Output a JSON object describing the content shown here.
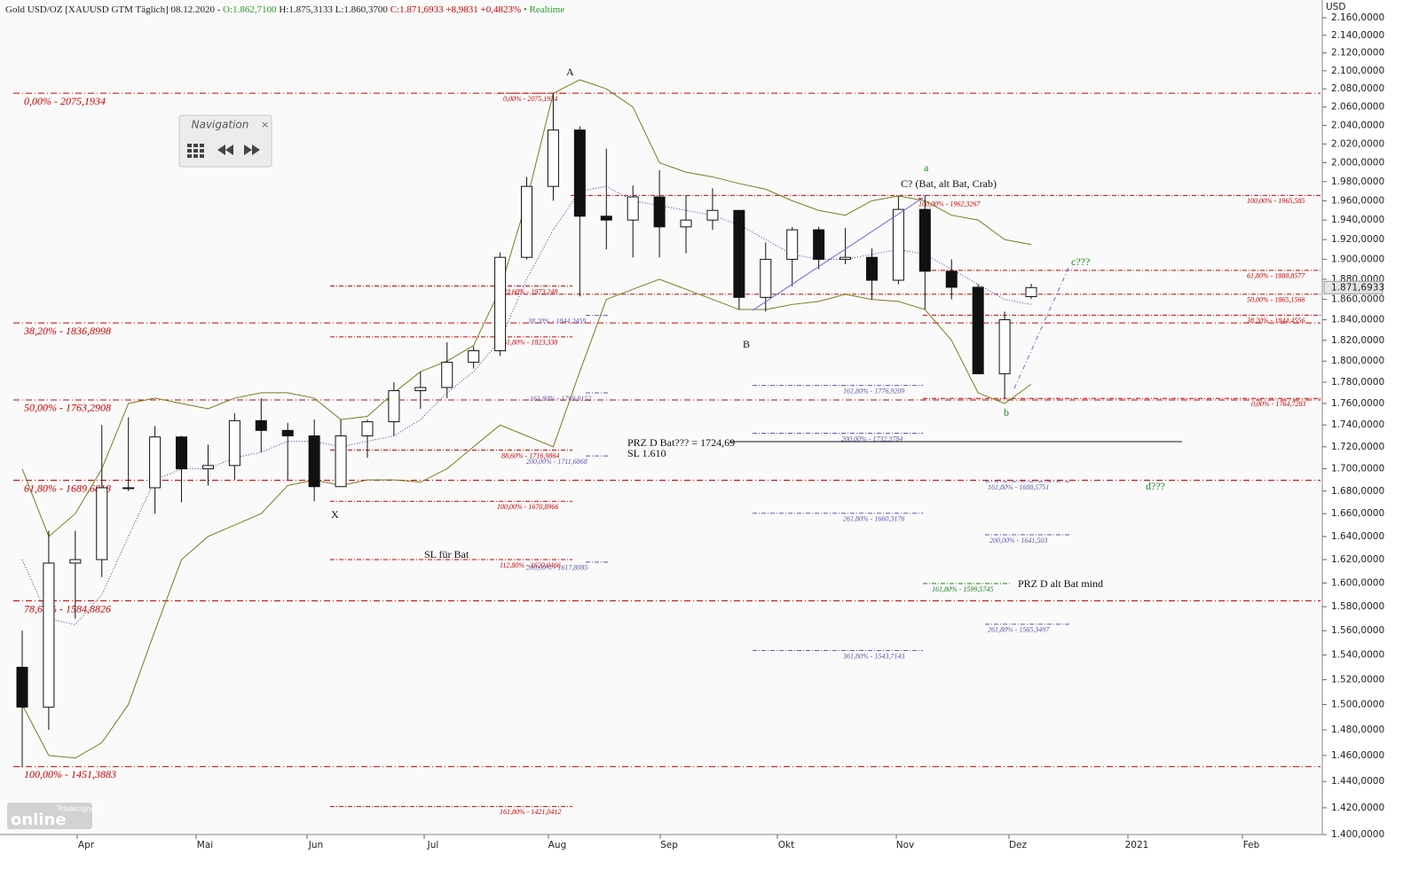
{
  "chart_data": {
    "type": "candlestick",
    "header": [
      {
        "text": "Gold USD/OZ [XAUUSD GTM Täglich] 08.12.2020 - ",
        "color": "#222222"
      },
      {
        "text": "O:1.862,7100 ",
        "color": "#2a9a2a"
      },
      {
        "text": "H:1.875,3133 L:1.860,3700 ",
        "color": "#222222"
      },
      {
        "text": "C:1.871,6933 +8,9831 +0,4823% ",
        "color": "#cc0000"
      },
      {
        "text": "• Realtime",
        "color": "#2a9a2a"
      }
    ],
    "y_axis_label": "USD",
    "log_scale": true,
    "ylim": [
      1400,
      2160
    ],
    "yticks": [
      {
        "value": 1400,
        "label": "1.400,0000"
      },
      {
        "value": 1420,
        "label": "1.420,0000"
      },
      {
        "value": 1440,
        "label": "1.440,0000"
      },
      {
        "value": 1460,
        "label": "1.460,0000"
      },
      {
        "value": 1480,
        "label": "1.480,0000"
      },
      {
        "value": 1500,
        "label": "1.500,0000"
      },
      {
        "value": 1520,
        "label": "1.520,0000"
      },
      {
        "value": 1540,
        "label": "1.540,0000"
      },
      {
        "value": 1560,
        "label": "1.560,0000"
      },
      {
        "value": 1580,
        "label": "1.580,0000"
      },
      {
        "value": 1600,
        "label": "1.600,0000"
      },
      {
        "value": 1620,
        "label": "1.620,0000"
      },
      {
        "value": 1640,
        "label": "1.640,0000"
      },
      {
        "value": 1660,
        "label": "1.660,0000"
      },
      {
        "value": 1680,
        "label": "1.680,0000"
      },
      {
        "value": 1700,
        "label": "1.700,0000"
      },
      {
        "value": 1720,
        "label": "1.720,0000"
      },
      {
        "value": 1740,
        "label": "1.740,0000"
      },
      {
        "value": 1760,
        "label": "1.760,0000"
      },
      {
        "value": 1780,
        "label": "1.780,0000"
      },
      {
        "value": 1800,
        "label": "1.800,0000"
      },
      {
        "value": 1820,
        "label": "1.820,0000"
      },
      {
        "value": 1840,
        "label": "1.840,0000"
      },
      {
        "value": 1860,
        "label": "1.860,0000"
      },
      {
        "value": 1880,
        "label": "1.880,0000"
      },
      {
        "value": 1900,
        "label": "1.900,0000"
      },
      {
        "value": 1920,
        "label": "1.920,0000"
      },
      {
        "value": 1940,
        "label": "1.940,0000"
      },
      {
        "value": 1960,
        "label": "1.960,0000"
      },
      {
        "value": 1980,
        "label": "1.980,0000"
      },
      {
        "value": 2000,
        "label": "2.000,0000"
      },
      {
        "value": 2020,
        "label": "2.020,0000"
      },
      {
        "value": 2040,
        "label": "2.040,0000"
      },
      {
        "value": 2060,
        "label": "2.060,0000"
      },
      {
        "value": 2080,
        "label": "2.080,0000"
      },
      {
        "value": 2100,
        "label": "2.100,0000"
      },
      {
        "value": 2120,
        "label": "2.120,0000"
      },
      {
        "value": 2140,
        "label": "2.140,0000"
      },
      {
        "value": 2160,
        "label": "2.160,0000"
      }
    ],
    "x_labels": [
      "Apr",
      "Mai",
      "Jun",
      "Jul",
      "Aug",
      "Sep",
      "Okt",
      "Nov",
      "Dez",
      "2021",
      "Feb"
    ],
    "candles": {
      "open": [
        1530,
        1498,
        1617,
        1620,
        1683,
        1683,
        1729,
        1700,
        1703,
        1744,
        1735,
        1730,
        1684,
        1730,
        1743,
        1772,
        1775,
        1799,
        1810,
        1902,
        1975,
        2035,
        1944,
        1940,
        1964,
        1933,
        1940,
        1950,
        1862,
        1900,
        1930,
        1900,
        1902,
        1879,
        1951,
        1888,
        1872,
        1788,
        1862.71
      ],
      "high": [
        1560,
        1645,
        1645,
        1740,
        1747,
        1739,
        1730,
        1722,
        1751,
        1765,
        1742,
        1745,
        1745,
        1745,
        1780,
        1790,
        1818,
        1814,
        1907,
        1985,
        2075,
        2039,
        2015,
        1976,
        1992,
        1966,
        1973,
        1950,
        1917,
        1933,
        1933,
        1932,
        1911,
        1965,
        1966,
        1900,
        1875,
        1848,
        1875.31
      ],
      "low": [
        1451,
        1480,
        1570,
        1605,
        1680,
        1660,
        1670,
        1685,
        1690,
        1715,
        1690,
        1671,
        1690,
        1710,
        1730,
        1755,
        1765,
        1793,
        1805,
        1900,
        1960,
        1863,
        1910,
        1902,
        1902,
        1906,
        1930,
        1850,
        1848,
        1873,
        1890,
        1895,
        1860,
        1875,
        1850,
        1860,
        1800,
        1765,
        1860.37
      ],
      "close": [
        1498,
        1617,
        1620,
        1683,
        1683,
        1729,
        1700,
        1703,
        1744,
        1735,
        1730,
        1684,
        1730,
        1743,
        1772,
        1775,
        1799,
        1810,
        1902,
        1975,
        2035,
        1944,
        1940,
        1964,
        1933,
        1940,
        1950,
        1862,
        1900,
        1930,
        1900,
        1902,
        1879,
        1951,
        1888,
        1872,
        1788,
        1840,
        1871.69
      ]
    },
    "bands": {
      "upper": [
        1700,
        1640,
        1660,
        1700,
        1760,
        1765,
        1760,
        1755,
        1765,
        1770,
        1770,
        1765,
        1745,
        1748,
        1770,
        1790,
        1800,
        1815,
        1870,
        1960,
        2075,
        2090,
        2080,
        2060,
        2000,
        1990,
        1985,
        1978,
        1972,
        1960,
        1950,
        1945,
        1960,
        1965,
        1960,
        1945,
        1940,
        1920,
        1915
      ],
      "middle": [
        1620,
        1570,
        1565,
        1590,
        1640,
        1690,
        1700,
        1700,
        1710,
        1715,
        1725,
        1725,
        1720,
        1725,
        1730,
        1745,
        1770,
        1790,
        1820,
        1880,
        1930,
        1970,
        1975,
        1960,
        1955,
        1950,
        1945,
        1935,
        1920,
        1905,
        1900,
        1900,
        1905,
        1910,
        1905,
        1890,
        1875,
        1860,
        1855
      ],
      "lower": [
        1500,
        1460,
        1458,
        1470,
        1500,
        1560,
        1620,
        1640,
        1650,
        1660,
        1685,
        1690,
        1685,
        1690,
        1690,
        1688,
        1700,
        1720,
        1740,
        1730,
        1720,
        1790,
        1860,
        1870,
        1880,
        1870,
        1860,
        1850,
        1850,
        1855,
        1858,
        1865,
        1860,
        1858,
        1850,
        1820,
        1770,
        1760,
        1778
      ],
      "band_color": "#7a7a20",
      "middle_color": "#3040a0"
    },
    "levels": [
      {
        "label": "0,00% - 2075,1934",
        "value": 2075.1934,
        "color": "#cc0000"
      },
      {
        "label": "38,20% - 1836,8998",
        "value": 1836.8998,
        "color": "#cc0000"
      },
      {
        "label": "50,00% - 1763,2908",
        "value": 1763.2908,
        "color": "#cc0000"
      },
      {
        "label": "61,80% - 1689,6818",
        "value": 1689.6818,
        "color": "#cc0000"
      },
      {
        "label": "78,60% - 1584,8826",
        "value": 1584.8826,
        "color": "#cc0000"
      },
      {
        "label": "100,00% - 1451,3883",
        "value": 1451.3883,
        "color": "#cc0000"
      },
      {
        "label": "100,00% - 1965,585",
        "value": 1965.585,
        "color": "#cc0000"
      },
      {
        "label": "61,80% - 1888,8577",
        "value": 1888.8577,
        "color": "#cc0000"
      },
      {
        "label": "50,00% - 1865,1566",
        "value": 1865.1566,
        "color": "#cc0000"
      },
      {
        "label": "38,20% - 1844,4556",
        "value": 1844.4556,
        "color": "#cc0000"
      },
      {
        "label": "0,00% - 1764,7283",
        "value": 1764.7283,
        "color": "#cc0000"
      },
      {
        "label": "0,00% - 2075,1934",
        "value": 2075.1934,
        "color": "#cc0000"
      },
      {
        "label": "23,60% - 1873,248",
        "value": 1873.248,
        "color": "#cc0000"
      },
      {
        "label": "61,80% - 1823,338",
        "value": 1823.338,
        "color": "#cc0000"
      },
      {
        "label": "88,60% - 1716,9864",
        "value": 1716.9864,
        "color": "#cc0000"
      },
      {
        "label": "100,00% - 1670,8966",
        "value": 1670.8966,
        "color": "#cc0000"
      },
      {
        "label": "112,80% - 1620,0466",
        "value": 1620.0466,
        "color": "#cc0000"
      },
      {
        "label": "161,80% - 1421,0412",
        "value": 1421.0412,
        "color": "#cc0000"
      },
      {
        "label": "100,00% - 1962,3267",
        "value": 1962.3267,
        "color": "#cc0000"
      },
      {
        "label": "38,20% - 1844,2459",
        "value": 1844.2459,
        "color": "#5a5ab0"
      },
      {
        "label": "161,80% - 1769,9152",
        "value": 1769.9152,
        "color": "#5a5ab0"
      },
      {
        "label": "200,00% - 1711,6868",
        "value": 1711.6868,
        "color": "#5a5ab0"
      },
      {
        "label": "200,00% - 1617,8085",
        "value": 1617.8085,
        "color": "#5a5ab0"
      },
      {
        "label": "161,80% - 1776,9209",
        "value": 1776.9209,
        "color": "#5a5ab0"
      },
      {
        "label": "200,00% - 1732,3784",
        "value": 1732.3784,
        "color": "#5a5ab0"
      },
      {
        "label": "261,80% - 1660,3176",
        "value": 1660.3176,
        "color": "#5a5ab0"
      },
      {
        "label": "361,80% - 1543,7143",
        "value": 1543.7143,
        "color": "#5a5ab0"
      },
      {
        "label": "161,80% - 1688,5751",
        "value": 1688.5751,
        "color": "#5a5ab0"
      },
      {
        "label": "200,00% - 1641,503",
        "value": 1641.503,
        "color": "#5a5ab0"
      },
      {
        "label": "261,80% - 1565,3497",
        "value": 1565.3497,
        "color": "#5a5ab0"
      },
      {
        "label": "161,80% - 1599,5745",
        "value": 1599.5745,
        "color": "#1a7a1a"
      }
    ],
    "prz_value": 1724.69,
    "annotations": [
      {
        "text": "A",
        "color": "#111111"
      },
      {
        "text": "B",
        "color": "#111111"
      },
      {
        "text": "C? (Bat, alt Bat, Crab)",
        "color": "#111111"
      },
      {
        "text": "a",
        "color": "#1a8a1a"
      },
      {
        "text": "b",
        "color": "#1a8a1a"
      },
      {
        "text": "c???",
        "color": "#1a8a1a"
      },
      {
        "text": "d???",
        "color": "#1a8a1a"
      },
      {
        "text": "X",
        "color": "#111111"
      },
      {
        "text": "SL für Bat",
        "color": "#111111"
      },
      {
        "text": "PRZ D Bat??? = 1724,69",
        "color": "#111111"
      },
      {
        "text": "SL 1.610",
        "color": "#111111"
      },
      {
        "text": "PRZ D alt Bat mind",
        "color": "#111111"
      }
    ],
    "last_price": {
      "value": 1871.6933,
      "label": "1.871,6933"
    },
    "navigation": "Navigation",
    "logo": {
      "brand": "Tradesignal",
      "name": "online"
    }
  }
}
